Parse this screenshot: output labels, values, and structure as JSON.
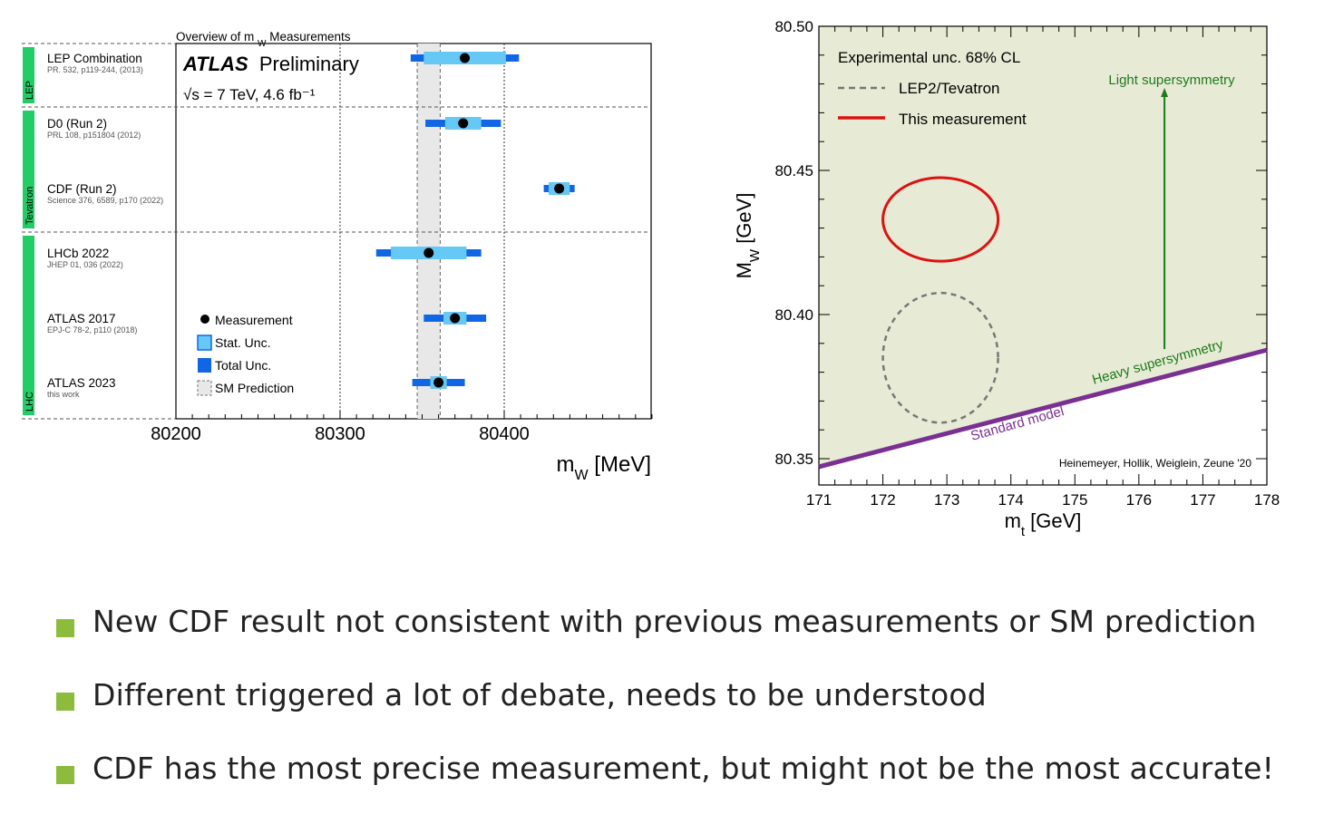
{
  "colors": {
    "bullet": "#8dbb3c",
    "stat_unc": "#66c8f5",
    "total_unc": "#1166e6",
    "group_bar": "#22cc66",
    "sm_band": "#e8e8e8",
    "panel_fill": "#e7ebd5",
    "this_measurement": "#dd1111",
    "lep2_tevatron": "#777777",
    "standard_model": "#7a2f93",
    "susy_arrow": "#1d7a1d"
  },
  "chart_data": [
    {
      "type": "scatter",
      "title": "Overview of m_W Measurements",
      "experiment_label": {
        "bold": "ATLAS",
        "text": "Preliminary"
      },
      "energy_label": "√s = 7 TeV, 4.6 fb⁻¹",
      "xlabel": "m_W [MeV]",
      "xlim": [
        80200,
        80490
      ],
      "xticks": [
        80200,
        80300,
        80400
      ],
      "grid": "vertical dotted at ticks",
      "sm_prediction": {
        "low": 80347,
        "high": 80361,
        "central": 80354
      },
      "groups": [
        {
          "name": "LEP",
          "rows": [
            0
          ]
        },
        {
          "name": "Tevatron",
          "rows": [
            1,
            2
          ]
        },
        {
          "name": "LHC",
          "rows": [
            3,
            4,
            5
          ]
        }
      ],
      "measurements": [
        {
          "name": "LEP Combination",
          "ref": "PR. 532, p119-244, (2013)",
          "value": 80376,
          "stat": 25,
          "total": 33
        },
        {
          "name": "D0 (Run 2)",
          "ref": "PRL 108, p151804 (2012)",
          "value": 80375,
          "stat": 11,
          "total": 23
        },
        {
          "name": "CDF (Run 2)",
          "ref": "Science 376, 6589, p170 (2022)",
          "value": 80433.5,
          "stat": 6.4,
          "total": 9.4
        },
        {
          "name": "LHCb 2022",
          "ref": "JHEP 01, 036 (2022)",
          "value": 80354,
          "stat": 23,
          "total": 32
        },
        {
          "name": "ATLAS 2017",
          "ref": "EPJ-C 78-2, p110 (2018)",
          "value": 80370,
          "stat": 7,
          "total": 19
        },
        {
          "name": "ATLAS 2023",
          "ref": "this work",
          "value": 80360,
          "stat": 5,
          "total": 16
        }
      ],
      "legend": {
        "placement": "bottom-left",
        "entries": [
          "Measurement",
          "Stat. Unc.",
          "Total Unc.",
          "SM Prediction"
        ]
      }
    },
    {
      "type": "line",
      "xlabel": "m_t [GeV]",
      "ylabel": "M_W [GeV]",
      "xlim": [
        171,
        178
      ],
      "ylim": [
        80.35,
        80.5
      ],
      "xticks": [
        171,
        172,
        173,
        174,
        175,
        176,
        177,
        178
      ],
      "yticks": [
        80.35,
        80.4,
        80.45,
        80.5
      ],
      "credit": "Heinemeyer, Hollik, Weiglein, Zeune '20",
      "legend": {
        "placement": "top-left",
        "title": "Experimental unc. 68% CL",
        "entries": [
          "LEP2/Tevatron",
          "This measurement"
        ]
      },
      "standard_model_line": {
        "label": "Standard model",
        "x": [
          171,
          178
        ],
        "y": [
          80.3472,
          80.3877
        ]
      },
      "heavy_susy_label": "Heavy supersymmetry",
      "light_susy_label": "Light supersymmetry",
      "light_susy_arrow": {
        "x": 176.4,
        "y_from": 80.388,
        "y_to": 80.478
      },
      "ellipses": [
        {
          "name": "This measurement",
          "cx": 172.9,
          "cy": 80.433,
          "rx": 0.9,
          "ry": 0.0145
        },
        {
          "name": "LEP2/Tevatron",
          "cx": 172.9,
          "cy": 80.385,
          "rx": 0.9,
          "ry": 0.0225
        }
      ]
    }
  ],
  "bullets": [
    "New CDF result not consistent with previous measurements or SM prediction",
    "Different triggered a lot of debate, needs to be understood",
    "CDF has the most precise measurement, but might not be the most accurate!"
  ]
}
